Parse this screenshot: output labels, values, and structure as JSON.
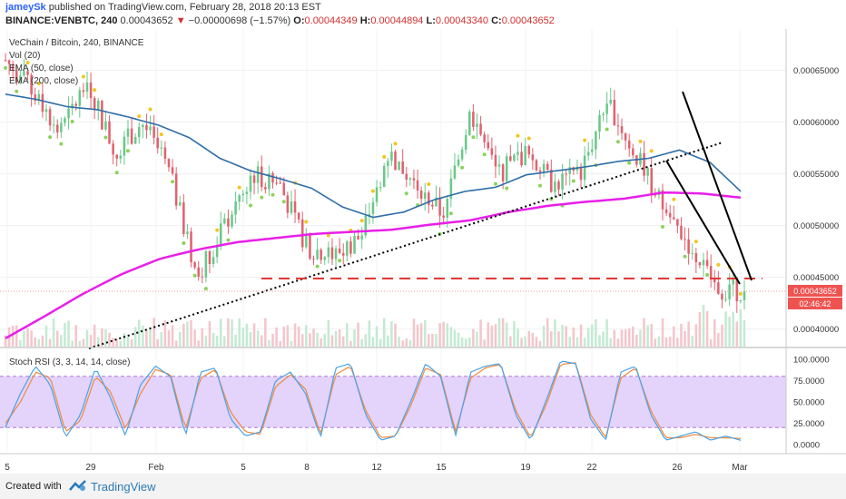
{
  "header": {
    "author": "jameySk",
    "published_text": "published on TradingView.com, February 28, 2018 20:13 EST",
    "symbol": "BINANCE:VENBTC, 240",
    "price": "0.00043652",
    "arrow": "▼",
    "change": "−0.00000698 (−1.57%)",
    "o_label": "O:",
    "o_value": "0.00044349",
    "h_label": "H:",
    "h_value": "0.00044894",
    "l_label": "L:",
    "l_value": "0.00043340",
    "c_label": "C:",
    "c_value": "0.00043652"
  },
  "legend": {
    "title": "VeChain / Bitcoin, 240, BINANCE",
    "vol": "Vol (20)",
    "ema50": "EMA (50, close)",
    "ema200": "EMA (200, close)"
  },
  "stoch": {
    "label": "Stoch RSI (3, 3, 14, 14, close)"
  },
  "price_badge": "0.00043652",
  "timer_badge": "02:46:42",
  "footer": {
    "created": "Created with",
    "brand": "TradingView"
  },
  "colors": {
    "up": "#6ac88a",
    "down": "#e0626f",
    "ema50": "#2f6ea8",
    "ema200": "#e91ee9",
    "stoch_k": "#4aa3e6",
    "stoch_d": "#f08a3c",
    "stoch_band": "#e4d3fa",
    "price_line": "#ef5350",
    "sar_up": "#f2c520",
    "sar_down": "#8bd35a"
  },
  "chart_data": {
    "type": "candlestick",
    "title": "VeChain / Bitcoin, 240, BINANCE",
    "x_ticks": [
      "5",
      "29",
      "Feb",
      "5",
      "8",
      "12",
      "15",
      "19",
      "22",
      "26",
      "Mar"
    ],
    "y_ticks": [
      "0.00065000",
      "0.00060000",
      "0.00055000",
      "0.00050000",
      "0.00045000",
      "0.00040000"
    ],
    "ylim": [
      0.000383,
      0.00069
    ],
    "last_price": 0.00043652,
    "price_key": [
      0.00066,
      0.00063,
      0.00059,
      0.00064,
      0.00057,
      0.0006,
      0.00055,
      0.00045,
      0.0005,
      0.00055,
      0.00054,
      0.00048,
      0.00047,
      0.00049,
      0.00057,
      0.00054,
      0.00051,
      0.00061,
      0.00055,
      0.00057,
      0.00054,
      0.00055,
      0.00062,
      0.00057,
      0.00052,
      0.00048,
      0.00044,
      0.000436
    ],
    "ema50_key": [
      0.000627,
      0.000622,
      0.000615,
      0.000612,
      0.000605,
      0.000597,
      0.000585,
      0.000565,
      0.000553,
      0.000545,
      0.000536,
      0.000518,
      0.000508,
      0.000513,
      0.000525,
      0.000533,
      0.000537,
      0.000549,
      0.000553,
      0.000557,
      0.000562,
      0.000565,
      0.000573,
      0.000561,
      0.000533
    ],
    "ema200_key": [
      0.000391,
      0.000412,
      0.000434,
      0.000453,
      0.000468,
      0.000477,
      0.000484,
      0.000488,
      0.000492,
      0.000494,
      0.000496,
      0.000501,
      0.000505,
      0.000513,
      0.000519,
      0.000523,
      0.000526,
      0.000532,
      0.000531,
      0.000527
    ],
    "stoch_rsi": {
      "bands": [
        80,
        20
      ],
      "y_ticks": [
        "100.0000",
        "75.0000",
        "50.0000",
        "25.0000",
        "0.0000"
      ],
      "k_key": [
        20,
        60,
        92,
        70,
        8,
        35,
        90,
        55,
        10,
        70,
        92,
        80,
        10,
        85,
        90,
        30,
        10,
        15,
        75,
        85,
        60,
        8,
        90,
        95,
        35,
        5,
        10,
        50,
        95,
        80,
        10,
        85,
        92,
        95,
        35,
        5,
        50,
        98,
        95,
        30,
        5,
        85,
        92,
        35,
        5,
        10,
        15,
        5,
        10,
        5
      ],
      "d_key": [
        25,
        50,
        85,
        78,
        15,
        28,
        80,
        62,
        18,
        60,
        88,
        82,
        18,
        78,
        88,
        38,
        15,
        12,
        68,
        82,
        65,
        12,
        82,
        92,
        40,
        8,
        10,
        45,
        90,
        82,
        15,
        78,
        90,
        94,
        40,
        8,
        45,
        94,
        96,
        35,
        8,
        78,
        90,
        40,
        8,
        8,
        12,
        8,
        8,
        7
      ]
    }
  }
}
